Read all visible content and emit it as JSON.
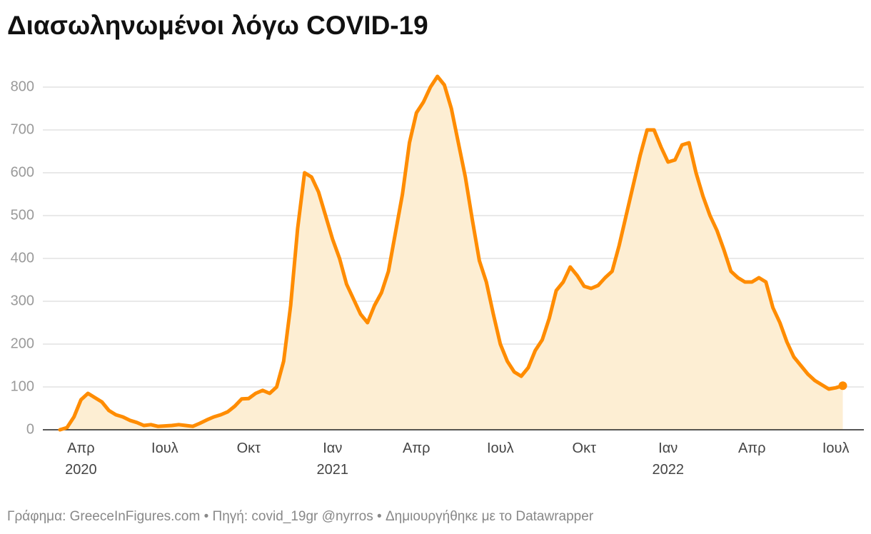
{
  "chart_data": {
    "type": "area",
    "title": "Διασωληνωμένοι λόγω COVID-19",
    "footer": "Γράφημα: GreeceInFigures.com • Πηγή: covid_19gr @nyrros • Δημιουργήθηκε με το Datawrapper",
    "categories": [
      null,
      null,
      null,
      "Απρ 2020",
      null,
      null,
      null,
      null,
      null,
      null,
      null,
      null,
      null,
      null,
      null,
      "Ιουλ",
      null,
      null,
      null,
      null,
      null,
      null,
      null,
      null,
      null,
      null,
      null,
      "Οκτ",
      null,
      null,
      null,
      null,
      null,
      null,
      null,
      null,
      null,
      null,
      null,
      "Ιαν 2021",
      null,
      null,
      null,
      null,
      null,
      null,
      null,
      null,
      null,
      null,
      null,
      "Απρ",
      null,
      null,
      null,
      null,
      null,
      null,
      null,
      null,
      null,
      null,
      null,
      "Ιουλ",
      null,
      null,
      null,
      null,
      null,
      null,
      null,
      null,
      null,
      null,
      null,
      "Οκτ",
      null,
      null,
      null,
      null,
      null,
      null,
      null,
      null,
      null,
      null,
      null,
      "Ιαν 2022",
      null,
      null,
      null,
      null,
      null,
      null,
      null,
      null,
      null,
      null,
      null,
      "Απρ",
      null,
      null,
      null,
      null,
      null,
      null,
      null,
      null,
      null,
      null,
      null,
      "Ιουλ",
      null
    ],
    "values": [
      0,
      5,
      30,
      70,
      85,
      75,
      65,
      45,
      35,
      30,
      22,
      17,
      10,
      12,
      8,
      9,
      10,
      12,
      10,
      8,
      15,
      23,
      30,
      35,
      42,
      55,
      72,
      73,
      85,
      92,
      85,
      100,
      160,
      290,
      470,
      600,
      590,
      555,
      500,
      445,
      400,
      340,
      305,
      270,
      250,
      290,
      320,
      370,
      460,
      550,
      670,
      740,
      765,
      800,
      825,
      805,
      750,
      670,
      590,
      490,
      395,
      345,
      270,
      200,
      160,
      135,
      125,
      145,
      185,
      210,
      260,
      325,
      345,
      380,
      360,
      335,
      330,
      337,
      355,
      370,
      430,
      500,
      570,
      640,
      700,
      700,
      660,
      625,
      630,
      665,
      670,
      600,
      545,
      500,
      465,
      420,
      370,
      355,
      345,
      345,
      355,
      345,
      285,
      250,
      205,
      170,
      150,
      130,
      115,
      105,
      95,
      98,
      103
    ],
    "color": "#ff8c00",
    "area_color": "#fdeed3",
    "ylim": [
      0,
      800
    ],
    "yticks": [
      0,
      100,
      200,
      300,
      400,
      500,
      600,
      700,
      800
    ],
    "grid": true
  }
}
